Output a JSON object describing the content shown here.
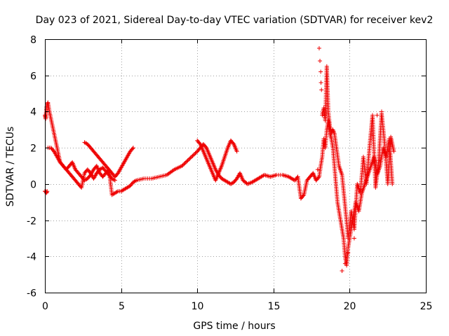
{
  "chart_data": {
    "type": "scatter",
    "title": "Day 023 of 2021, Sidereal Day-to-day VTEC variation (SDTVAR) for receiver kev2",
    "xlabel": "GPS time / hours",
    "ylabel": "SDTVAR / TECUs",
    "xlim": [
      0,
      25
    ],
    "ylim": [
      -6,
      8
    ],
    "xticks": [
      "0",
      "5",
      "10",
      "15",
      "20",
      "25"
    ],
    "yticks": [
      "-6",
      "-4",
      "-2",
      "0",
      "2",
      "4",
      "6",
      "8"
    ],
    "grid": true,
    "marker": "plus",
    "marker_color": "#ee0000",
    "series": [
      {
        "name": "SDTVAR",
        "x": [
          0.0,
          0.05,
          0.1,
          0.15,
          0.2,
          0.3,
          0.4,
          0.5,
          0.6,
          0.7,
          0.8,
          0.9,
          1.0,
          1.2,
          1.4,
          1.6,
          1.8,
          2.0,
          2.2,
          2.4,
          2.6,
          2.8,
          3.0,
          3.2,
          3.4,
          3.6,
          3.8,
          4.0,
          4.2,
          4.4,
          4.6,
          4.8,
          5.0,
          5.2,
          5.4,
          5.6,
          5.8,
          6.0,
          6.5,
          7.0,
          7.5,
          8.0,
          8.5,
          9.0,
          9.5,
          10.0,
          10.2,
          10.4,
          10.6,
          10.8,
          11.0,
          11.2,
          11.4,
          11.6,
          11.8,
          12.0,
          12.2,
          12.4,
          12.6,
          12.8,
          13.0,
          13.3,
          13.6,
          14.0,
          14.4,
          14.8,
          15.2,
          15.6,
          16.0,
          16.4,
          16.6,
          16.8,
          17.0,
          17.2,
          17.4,
          17.6,
          17.8,
          18.0,
          18.1,
          18.2,
          18.3,
          18.4,
          18.5,
          18.6,
          18.7,
          18.8,
          18.9,
          19.0,
          19.1,
          19.2,
          19.3,
          19.4,
          19.5,
          19.6,
          19.7,
          19.8,
          19.9,
          20.0,
          20.1,
          20.2,
          20.4,
          20.6,
          20.8,
          21.0,
          21.2,
          21.4,
          21.6,
          21.8,
          22.0,
          22.2,
          22.4,
          22.6,
          22.8,
          0.2,
          0.4,
          0.6,
          0.8,
          1.0,
          1.2,
          1.4,
          1.6,
          1.8,
          2.0,
          2.2,
          2.4,
          2.6,
          2.8,
          3.0,
          3.2,
          3.4,
          3.6,
          3.8,
          4.0,
          4.2,
          4.4,
          4.6,
          2.6,
          2.8,
          3.0,
          3.2,
          3.4,
          3.6,
          3.8,
          4.0,
          4.2,
          4.4,
          4.6,
          4.8,
          5.0,
          5.2,
          5.4,
          5.6,
          5.8,
          10.0,
          10.2,
          10.4,
          10.6,
          10.8,
          11.0,
          11.2,
          11.4,
          11.6,
          11.8,
          12.0,
          12.2,
          12.4,
          12.6,
          18.2,
          18.3,
          18.4,
          18.5,
          18.6,
          18.7,
          18.8,
          18.9,
          19.0,
          19.3,
          19.5,
          19.7,
          19.9,
          20.1,
          20.3,
          20.5,
          20.7,
          20.9,
          21.1,
          21.3,
          21.5,
          21.7,
          21.9,
          22.1,
          22.3,
          22.5,
          22.7,
          22.9,
          0.0,
          0.05,
          0.1,
          0.15
        ],
        "y": [
          3.8,
          3.6,
          4.2,
          4.4,
          4.5,
          4.0,
          3.6,
          3.2,
          2.8,
          2.4,
          2.0,
          1.6,
          1.2,
          1.0,
          0.8,
          1.0,
          1.2,
          0.8,
          0.6,
          0.4,
          0.2,
          0.3,
          0.5,
          0.8,
          1.0,
          0.6,
          0.4,
          0.6,
          0.8,
          -0.6,
          -0.5,
          -0.4,
          -0.4,
          -0.3,
          -0.2,
          -0.1,
          0.1,
          0.2,
          0.3,
          0.3,
          0.4,
          0.5,
          0.8,
          1.0,
          1.4,
          1.8,
          2.0,
          2.2,
          2.0,
          1.6,
          1.2,
          0.8,
          0.5,
          0.3,
          0.2,
          0.1,
          0.0,
          0.1,
          0.3,
          0.6,
          0.2,
          0.0,
          0.1,
          0.3,
          0.5,
          0.4,
          0.5,
          0.5,
          0.4,
          0.2,
          0.4,
          -0.8,
          -0.6,
          0.2,
          0.4,
          0.6,
          0.2,
          0.4,
          1.0,
          1.5,
          2.5,
          2.0,
          3.0,
          3.5,
          2.8,
          2.5,
          2.0,
          1.0,
          0.0,
          -1.0,
          -1.5,
          -2.0,
          -2.5,
          -3.0,
          -4.0,
          -4.5,
          -3.5,
          -3.0,
          -2.5,
          -2.0,
          -1.0,
          -1.5,
          -0.5,
          0.0,
          0.5,
          1.0,
          1.5,
          0.5,
          1.0,
          2.0,
          1.5,
          2.5,
          0.0,
          2.0,
          2.0,
          1.8,
          1.5,
          1.2,
          1.0,
          0.8,
          0.6,
          0.4,
          0.2,
          0.0,
          -0.2,
          0.6,
          0.8,
          0.6,
          0.3,
          0.6,
          0.8,
          0.9,
          0.7,
          0.5,
          0.3,
          0.2,
          2.3,
          2.2,
          2.0,
          1.8,
          1.6,
          1.4,
          1.2,
          1.0,
          0.8,
          0.6,
          0.4,
          0.6,
          0.9,
          1.2,
          1.5,
          1.8,
          2.0,
          2.4,
          2.2,
          1.8,
          1.4,
          1.0,
          0.6,
          0.2,
          0.6,
          1.0,
          1.5,
          2.0,
          2.4,
          2.2,
          1.8,
          3.8,
          4.2,
          3.5,
          6.5,
          4.0,
          3.2,
          2.8,
          3.0,
          2.8,
          1.0,
          0.5,
          -1.2,
          -3.0,
          -1.5,
          -2.5,
          0.0,
          -0.5,
          1.5,
          0.0,
          2.0,
          3.8,
          -0.2,
          1.2,
          3.9,
          2.2,
          0.0,
          2.6,
          1.8,
          -0.4,
          -0.4,
          -0.5,
          -0.4
        ]
      }
    ],
    "outliers": {
      "x": [
        17.9,
        18.0,
        18.05,
        18.1,
        18.12,
        18.15,
        19.5,
        19.7,
        19.9,
        20.3,
        21.8,
        22.1
      ],
      "y": [
        0.8,
        7.5,
        6.8,
        6.2,
        5.6,
        5.2,
        -4.8,
        -4.4,
        -3.8,
        -3.0,
        3.8,
        4.0
      ]
    }
  }
}
